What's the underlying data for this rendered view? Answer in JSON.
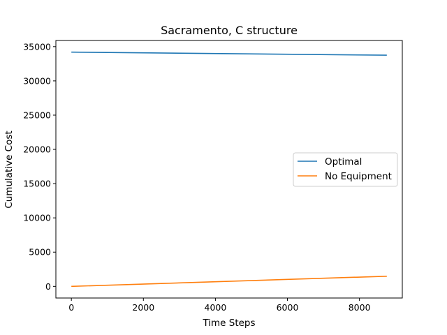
{
  "chart_data": {
    "type": "line",
    "title": "Sacramento, C structure",
    "xlabel": "Time Steps",
    "ylabel": "Cumulative Cost",
    "xlim": [
      -430,
      9190
    ],
    "ylim": [
      -1700,
      35900
    ],
    "xticks": [
      0,
      2000,
      4000,
      6000,
      8000
    ],
    "yticks": [
      0,
      5000,
      10000,
      15000,
      20000,
      25000,
      30000,
      35000
    ],
    "grid": false,
    "legend_position": "center-right",
    "series": [
      {
        "name": "Optimal",
        "color": "#1f77b4",
        "x": [
          0,
          8760
        ],
        "y": [
          34200,
          33750
        ]
      },
      {
        "name": "No Equipment",
        "color": "#ff7f0e",
        "x": [
          0,
          8760
        ],
        "y": [
          0,
          1480
        ]
      }
    ]
  }
}
